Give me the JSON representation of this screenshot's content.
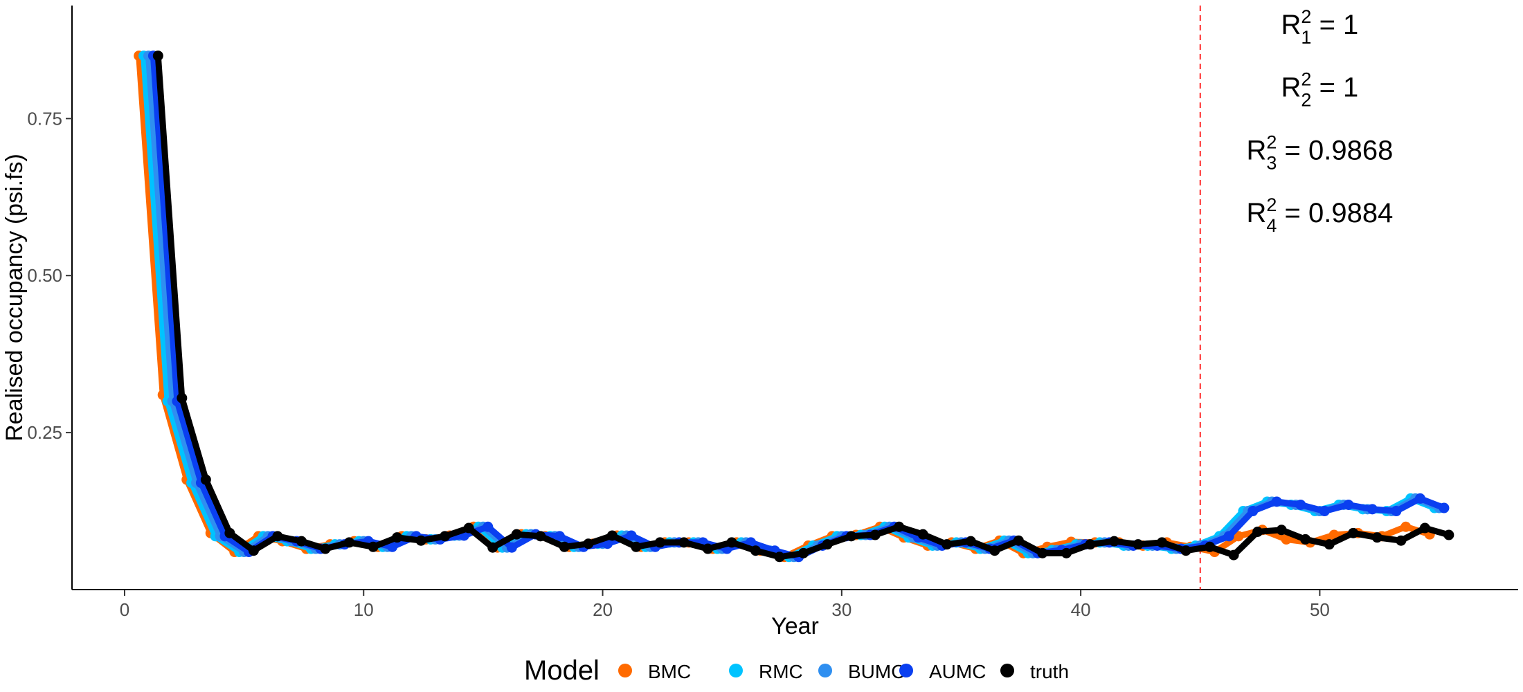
{
  "chart_data": {
    "type": "line",
    "xlabel": "Year",
    "ylabel": "Realised occupancy (psi.fs)",
    "xlim": [
      -2.2,
      58.3
    ],
    "ylim": [
      0.0,
      0.93
    ],
    "x_ticks": [
      0,
      10,
      20,
      30,
      40,
      50
    ],
    "y_ticks": [
      0.25,
      0.5,
      0.75
    ],
    "x_tick_labels": [
      "0",
      "10",
      "20",
      "30",
      "40",
      "50"
    ],
    "y_tick_labels": [
      "0.25",
      "0.50",
      "0.75"
    ],
    "grid": false,
    "legend_title": "Model",
    "legend_position": "bottom",
    "vline": {
      "x": 45,
      "color": "#ff2a2a",
      "style": "dashed"
    },
    "annotations": [
      {
        "base": "R",
        "sup": "2",
        "sub": "1",
        "rest": " = 1",
        "x": 50.0,
        "y": 0.885
      },
      {
        "base": "R",
        "sup": "2",
        "sub": "2",
        "rest": " = 1",
        "x": 50.0,
        "y": 0.785
      },
      {
        "base": "R",
        "sup": "2",
        "sub": "3",
        "rest": " = 0.9868",
        "x": 50.0,
        "y": 0.685
      },
      {
        "base": "R",
        "sup": "2",
        "sub": "4",
        "rest": " = 0.9884",
        "x": 50.0,
        "y": 0.585
      }
    ],
    "series": [
      {
        "name": "BMC",
        "color": "#ff6a00",
        "shift": 0.6,
        "y": [
          0.85,
          0.31,
          0.175,
          0.09,
          0.06,
          0.085,
          0.077,
          0.065,
          0.072,
          0.077,
          0.068,
          0.085,
          0.08,
          0.086,
          0.1,
          0.067,
          0.088,
          0.085,
          0.068,
          0.073,
          0.086,
          0.068,
          0.075,
          0.075,
          0.065,
          0.075,
          0.062,
          0.052,
          0.07,
          0.085,
          0.087,
          0.1,
          0.083,
          0.07,
          0.075,
          0.065,
          0.078,
          0.058,
          0.068,
          0.076,
          0.075,
          0.075,
          0.07,
          0.075,
          0.068,
          0.06,
          0.085,
          0.095,
          0.08,
          0.075,
          0.087,
          0.09,
          0.085,
          0.1,
          0.088
        ]
      },
      {
        "name": "RMC",
        "color": "#00c3ff",
        "shift": 0.8,
        "y": [
          0.85,
          0.3,
          0.17,
          0.085,
          0.06,
          0.085,
          0.077,
          0.065,
          0.072,
          0.077,
          0.068,
          0.085,
          0.08,
          0.086,
          0.1,
          0.067,
          0.088,
          0.085,
          0.068,
          0.073,
          0.086,
          0.068,
          0.075,
          0.075,
          0.065,
          0.075,
          0.062,
          0.052,
          0.07,
          0.085,
          0.087,
          0.1,
          0.083,
          0.07,
          0.075,
          0.065,
          0.078,
          0.058,
          0.063,
          0.072,
          0.075,
          0.07,
          0.07,
          0.065,
          0.07,
          0.085,
          0.125,
          0.14,
          0.135,
          0.125,
          0.135,
          0.128,
          0.125,
          0.145,
          0.13
        ]
      },
      {
        "name": "BUMC",
        "color": "#2f8ff0",
        "shift": 1.0,
        "y": [
          0.85,
          0.3,
          0.17,
          0.085,
          0.06,
          0.085,
          0.077,
          0.065,
          0.072,
          0.077,
          0.068,
          0.085,
          0.08,
          0.086,
          0.1,
          0.067,
          0.088,
          0.085,
          0.068,
          0.073,
          0.086,
          0.068,
          0.075,
          0.075,
          0.065,
          0.075,
          0.062,
          0.052,
          0.07,
          0.085,
          0.087,
          0.1,
          0.083,
          0.07,
          0.075,
          0.065,
          0.078,
          0.058,
          0.063,
          0.072,
          0.075,
          0.07,
          0.07,
          0.065,
          0.07,
          0.085,
          0.125,
          0.14,
          0.135,
          0.125,
          0.135,
          0.128,
          0.125,
          0.145,
          0.13
        ]
      },
      {
        "name": "AUMC",
        "color": "#0a3ff0",
        "shift": 1.2,
        "y": [
          0.85,
          0.3,
          0.17,
          0.085,
          0.06,
          0.085,
          0.077,
          0.065,
          0.072,
          0.077,
          0.068,
          0.085,
          0.08,
          0.086,
          0.1,
          0.067,
          0.088,
          0.085,
          0.068,
          0.073,
          0.086,
          0.068,
          0.075,
          0.075,
          0.065,
          0.075,
          0.062,
          0.052,
          0.07,
          0.085,
          0.087,
          0.1,
          0.083,
          0.07,
          0.075,
          0.065,
          0.078,
          0.058,
          0.063,
          0.072,
          0.075,
          0.07,
          0.07,
          0.065,
          0.07,
          0.085,
          0.125,
          0.14,
          0.135,
          0.125,
          0.135,
          0.128,
          0.125,
          0.145,
          0.13
        ]
      },
      {
        "name": "truth",
        "color": "#000000",
        "shift": 1.4,
        "y": [
          0.85,
          0.305,
          0.175,
          0.09,
          0.062,
          0.085,
          0.077,
          0.065,
          0.075,
          0.068,
          0.083,
          0.078,
          0.085,
          0.098,
          0.067,
          0.088,
          0.085,
          0.068,
          0.073,
          0.086,
          0.068,
          0.075,
          0.075,
          0.065,
          0.075,
          0.062,
          0.052,
          0.058,
          0.072,
          0.085,
          0.087,
          0.1,
          0.088,
          0.072,
          0.077,
          0.062,
          0.078,
          0.058,
          0.058,
          0.072,
          0.077,
          0.072,
          0.075,
          0.062,
          0.068,
          0.055,
          0.092,
          0.095,
          0.08,
          0.072,
          0.09,
          0.083,
          0.078,
          0.098,
          0.087
        ]
      }
    ]
  }
}
